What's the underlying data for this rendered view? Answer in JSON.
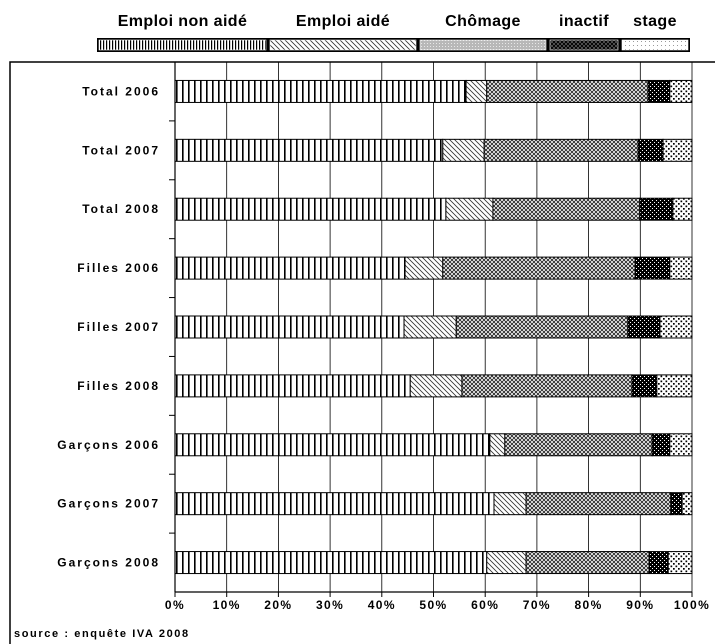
{
  "source_note": "source : enquête IVA 2008",
  "chart_data": {
    "type": "bar",
    "orientation": "horizontal",
    "stacked": true,
    "percent": true,
    "categories": [
      "Total 2006",
      "Total 2007",
      "Total 2008",
      "Filles 2006",
      "Filles 2007",
      "Filles 2008",
      "Garçons 2006",
      "Garçons 2007",
      "Garçons 2008"
    ],
    "series": [
      {
        "name": "Emploi non aidé",
        "values": [
          56.3,
          51.8,
          52.4,
          44.5,
          44.3,
          45.5,
          60.9,
          61.7,
          60.3
        ]
      },
      {
        "name": "Emploi aidé",
        "values": [
          4.0,
          8.0,
          9.1,
          7.3,
          10.1,
          10.0,
          2.9,
          6.2,
          7.6
        ]
      },
      {
        "name": "Chômage",
        "values": [
          31.2,
          29.8,
          28.4,
          37.2,
          33.2,
          32.9,
          28.5,
          28.0,
          23.8
        ]
      },
      {
        "name": "inactif",
        "values": [
          4.2,
          4.8,
          6.4,
          6.7,
          6.2,
          4.8,
          3.4,
          2.2,
          3.7
        ]
      },
      {
        "name": "stage",
        "values": [
          4.3,
          5.6,
          3.7,
          4.3,
          6.2,
          6.8,
          4.3,
          1.9,
          4.6
        ]
      }
    ],
    "x_tick_values": [
      0,
      10,
      20,
      30,
      40,
      50,
      60,
      70,
      80,
      90,
      100
    ],
    "x_tick_labels": [
      "0%",
      "10%",
      "20%",
      "30%",
      "40%",
      "50%",
      "60%",
      "70%",
      "80%",
      "90%",
      "100%"
    ],
    "xlim": [
      0,
      100
    ],
    "grid": true,
    "legend_position": "top"
  }
}
